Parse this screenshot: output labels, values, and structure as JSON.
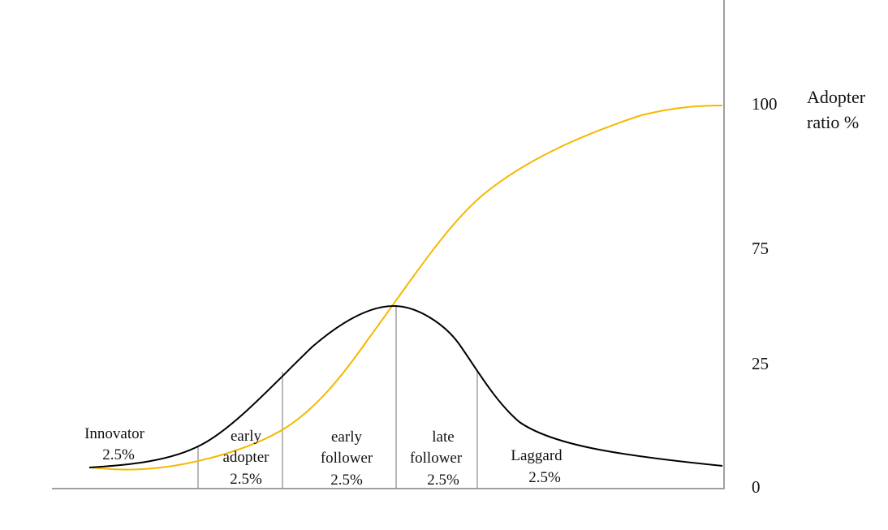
{
  "chart_data": {
    "type": "line",
    "y_axis": {
      "ticks": [
        "100",
        "75",
        "25",
        "0"
      ],
      "label_lines": [
        "Adopter",
        "ratio %"
      ],
      "position": "right"
    },
    "series": [
      {
        "color": "#000000"
      },
      {
        "color": "#f5b800"
      }
    ],
    "segments": [
      {
        "lines": [
          "Innovator",
          "2.5%"
        ]
      },
      {
        "lines": [
          "early",
          "adopter",
          "2.5%"
        ]
      },
      {
        "lines": [
          "early",
          "follower",
          "2.5%"
        ]
      },
      {
        "lines": [
          "late",
          "follower",
          "2.5%"
        ]
      },
      {
        "lines": [
          "Laggard",
          "2.5%"
        ]
      }
    ],
    "colors": {
      "axis": "#a0a0a0",
      "divider": "#a0a0a0"
    }
  }
}
